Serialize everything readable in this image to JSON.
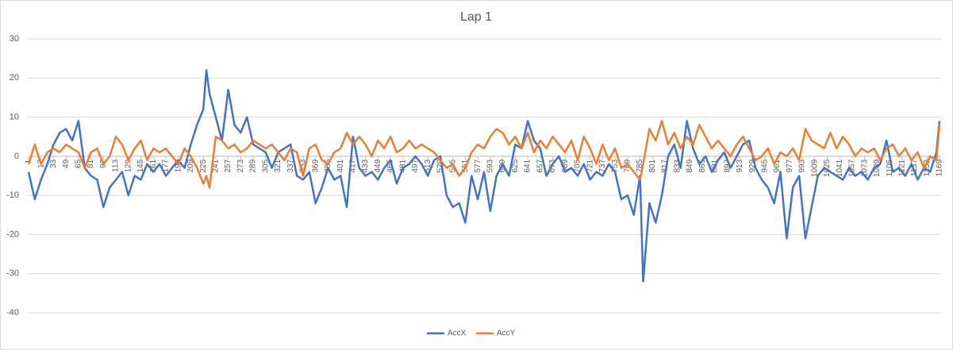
{
  "chart_data": {
    "type": "line",
    "title": "Lap 1",
    "x": [
      1,
      9,
      17,
      25,
      33,
      41,
      49,
      57,
      65,
      73,
      81,
      89,
      97,
      105,
      113,
      121,
      129,
      137,
      145,
      153,
      161,
      169,
      177,
      185,
      193,
      201,
      209,
      217,
      225,
      229,
      233,
      241,
      249,
      257,
      265,
      273,
      281,
      289,
      297,
      305,
      313,
      321,
      329,
      337,
      345,
      353,
      361,
      369,
      377,
      385,
      393,
      401,
      409,
      417,
      425,
      433,
      441,
      449,
      457,
      465,
      473,
      481,
      489,
      497,
      505,
      513,
      521,
      529,
      537,
      545,
      553,
      561,
      569,
      577,
      585,
      593,
      601,
      609,
      617,
      625,
      633,
      641,
      649,
      657,
      665,
      673,
      681,
      689,
      697,
      705,
      713,
      721,
      729,
      737,
      745,
      753,
      761,
      769,
      777,
      785,
      789,
      797,
      805,
      813,
      821,
      829,
      837,
      845,
      853,
      861,
      869,
      877,
      885,
      893,
      901,
      909,
      917,
      925,
      933,
      941,
      949,
      957,
      965,
      973,
      981,
      989,
      997,
      1005,
      1013,
      1021,
      1029,
      1037,
      1045,
      1053,
      1061,
      1069,
      1077,
      1085,
      1093,
      1101,
      1109,
      1117,
      1125,
      1133,
      1141,
      1149,
      1157,
      1165,
      1169
    ],
    "series": [
      {
        "name": "AccX",
        "color": "#4472c4",
        "values": [
          -4,
          -11,
          -6,
          -2,
          3,
          6,
          7,
          4,
          9,
          -3,
          -5,
          -6,
          -13,
          -8,
          -6,
          -4,
          -10,
          -5,
          -6,
          -2,
          -4,
          -2,
          -5,
          -3,
          -1,
          -3,
          3,
          8,
          12,
          22,
          16,
          10,
          4,
          17,
          8,
          6,
          10,
          3,
          2,
          1,
          -3,
          1,
          2,
          3,
          -5,
          -6,
          -4,
          -12,
          -8,
          -3,
          -6,
          -5,
          -13,
          5,
          -3,
          -5,
          -4,
          -6,
          -3,
          -1,
          -7,
          -3,
          -2,
          0,
          -2,
          -5,
          -1,
          0,
          -10,
          -13,
          -12,
          -17,
          -5,
          -11,
          -4,
          -14,
          -5,
          -2,
          -5,
          3,
          2,
          9,
          4,
          2,
          -5,
          -2,
          0,
          -4,
          -3,
          -5,
          -2,
          -6,
          -4,
          -5,
          -2,
          -4,
          -11,
          -10,
          -15,
          -5,
          -32,
          -12,
          -17,
          -10,
          0,
          3,
          -3,
          9,
          2,
          -2,
          0,
          -4,
          -1,
          1,
          -3,
          0,
          3,
          4,
          -3,
          -6,
          -8,
          -12,
          -4,
          -21,
          -8,
          -5,
          -21,
          -13,
          -5,
          -3,
          -4,
          -5,
          -6,
          -3,
          -5,
          -4,
          -6,
          -3,
          -2,
          4,
          -4,
          -3,
          -5,
          -2,
          -6,
          -3,
          -4,
          1,
          9
        ]
      },
      {
        "name": "AccY",
        "color": "#ed7d31",
        "values": [
          -2,
          3,
          -2,
          1,
          2,
          1,
          3,
          2,
          1,
          -3,
          1,
          2,
          -2,
          0,
          5,
          3,
          -1,
          2,
          4,
          -1,
          2,
          1,
          2,
          0,
          -2,
          2,
          0,
          -3,
          -7,
          -5,
          -8,
          5,
          4,
          2,
          3,
          1,
          2,
          4,
          3,
          2,
          3,
          1,
          -1,
          2,
          1,
          -5,
          2,
          3,
          -1,
          -2,
          1,
          2,
          6,
          3,
          5,
          3,
          0,
          4,
          2,
          5,
          1,
          2,
          4,
          2,
          3,
          2,
          1,
          -1,
          -3,
          -2,
          -5,
          -3,
          1,
          3,
          2,
          5,
          7,
          6,
          3,
          5,
          2,
          6,
          1,
          4,
          2,
          5,
          3,
          1,
          4,
          -1,
          5,
          2,
          -2,
          3,
          -1,
          2,
          -3,
          -2,
          -4,
          -6,
          -2,
          7,
          4,
          9,
          3,
          6,
          2,
          5,
          3,
          8,
          5,
          2,
          4,
          2,
          0,
          3,
          5,
          2,
          -1,
          0,
          2,
          -2,
          1,
          0,
          2,
          -1,
          7,
          4,
          3,
          2,
          6,
          2,
          5,
          3,
          0,
          2,
          1,
          2,
          -1,
          2,
          3,
          0,
          2,
          -1,
          1,
          -3,
          0,
          -1,
          8
        ]
      }
    ],
    "xlim": [
      0,
      1171
    ],
    "xticks": [
      1,
      17,
      33,
      49,
      65,
      81,
      97,
      113,
      129,
      145,
      161,
      177,
      193,
      209,
      225,
      241,
      257,
      273,
      289,
      305,
      321,
      337,
      353,
      369,
      385,
      401,
      417,
      433,
      449,
      465,
      481,
      497,
      513,
      529,
      545,
      561,
      577,
      593,
      609,
      625,
      641,
      657,
      673,
      689,
      705,
      721,
      737,
      753,
      769,
      785,
      801,
      817,
      833,
      849,
      865,
      881,
      897,
      913,
      929,
      945,
      961,
      977,
      993,
      1009,
      1025,
      1041,
      1057,
      1073,
      1089,
      1105,
      1121,
      1137,
      1153,
      1169
    ],
    "ylim": [
      -40,
      30
    ],
    "yticks": [
      -40,
      -30,
      -20,
      -10,
      0,
      10,
      20,
      30
    ],
    "grid": true,
    "legend": "bottom"
  }
}
